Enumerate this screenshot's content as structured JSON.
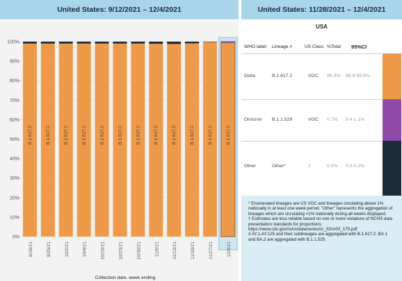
{
  "headers": {
    "left": "United States: 9/12/2021 – 12/4/2021",
    "right": "United States: 11/28/2021 – 12/4/2021"
  },
  "chart_data": {
    "type": "bar",
    "stacked": true,
    "categories": [
      "9/18/21",
      "9/25/21",
      "10/2/21",
      "10/9/21",
      "10/16/21",
      "10/23/21",
      "10/30/21",
      "11/6/21",
      "11/13/21",
      "11/20/21",
      "11/27/21",
      "12/4/21"
    ],
    "bar_label": "B.1.617.2",
    "series": [
      {
        "name": "B.1.617.2",
        "color": "#ef9a48",
        "values": [
          99.0,
          99.0,
          99.0,
          99.0,
          99.0,
          99.0,
          99.0,
          98.9,
          98.8,
          99.1,
          99.8,
          99.3
        ]
      },
      {
        "name": "B.1.1.529",
        "color": "#8e4aa6",
        "values": [
          0,
          0,
          0,
          0,
          0,
          0,
          0,
          0,
          0,
          0,
          0,
          0.7
        ]
      },
      {
        "name": "Other",
        "color": "#1a2b3a",
        "values": [
          1.0,
          1.0,
          1.0,
          1.0,
          1.0,
          1.0,
          1.0,
          1.1,
          1.2,
          0.9,
          0.2,
          0.0
        ]
      }
    ],
    "yticks": [
      "0%",
      "10%",
      "20%",
      "30%",
      "40%",
      "50%",
      "60%",
      "70%",
      "80%",
      "90%",
      "100%"
    ],
    "ylim": [
      0,
      100
    ],
    "xlabel": "Collection date, week ending",
    "highlighted_category": "12/4/21"
  },
  "table": {
    "title": "USA",
    "columns": {
      "who": "WHO label",
      "lineage": "Lineage #",
      "usclass": "US Class",
      "total": "%Total",
      "ci": "95%CI"
    },
    "rows": [
      {
        "who": "Delta",
        "lineage": "B.1.617.2",
        "usclass": "VOC",
        "total": "99.3%",
        "ci": "98.8-99.6%",
        "color": "#ef9a48"
      },
      {
        "who": "Omicron",
        "lineage": "B.1.1.529",
        "usclass": "VOC",
        "total": "0.7%",
        "ci": "0.4-1.1%",
        "color": "#8e4aa6"
      },
      {
        "who": "Other",
        "lineage": "Other*",
        "usclass": "†",
        "total": "0.0%",
        "ci": "0.0-0.2%",
        "color": "#1a2b3a"
      }
    ]
  },
  "footnotes": {
    "star": "*     Enumerated lineages are US VOC and lineages circulating above 1% nationally in at least one week period. \"Other\" represents the aggregation of lineages which are circulating <1% nationally during all weeks displayed.",
    "dagger": "†     Estimates are less reliable based on one or more violations of NCHS data presentation standards for proportions: https://www.cdc.gov/nchs/data/series/sr_02/sr02_175.pdf",
    "hash": "#     AY.1-AY.125 and their sublineages are aggregated with B.1.617.2. BA.1 and BA.2 are aggregated with B.1.1.529."
  }
}
